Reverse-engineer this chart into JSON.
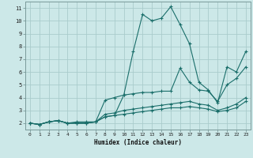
{
  "xlabel": "Humidex (Indice chaleur)",
  "background_color": "#cce8e8",
  "grid_color": "#aacccc",
  "line_color": "#1a6e6a",
  "xlim": [
    -0.5,
    23.5
  ],
  "ylim": [
    1.5,
    11.5
  ],
  "xticks": [
    0,
    1,
    2,
    3,
    4,
    5,
    6,
    7,
    8,
    9,
    10,
    11,
    12,
    13,
    14,
    15,
    16,
    17,
    18,
    19,
    20,
    21,
    22,
    23
  ],
  "yticks": [
    2,
    3,
    4,
    5,
    6,
    7,
    8,
    9,
    10,
    11
  ],
  "series": [
    [
      2.0,
      1.9,
      2.1,
      2.2,
      2.0,
      2.1,
      2.1,
      2.1,
      2.5,
      2.6,
      4.2,
      7.6,
      10.5,
      10.0,
      10.2,
      11.1,
      9.7,
      8.2,
      5.2,
      4.6,
      3.6,
      6.4,
      6.0,
      7.6
    ],
    [
      2.0,
      1.9,
      2.1,
      2.2,
      2.0,
      2.0,
      2.0,
      2.1,
      3.8,
      4.0,
      4.2,
      4.3,
      4.4,
      4.4,
      4.5,
      4.5,
      6.3,
      5.2,
      4.6,
      4.5,
      3.7,
      5.0,
      5.5,
      6.4
    ],
    [
      2.0,
      1.9,
      2.1,
      2.2,
      2.0,
      2.0,
      2.0,
      2.1,
      2.7,
      2.8,
      3.0,
      3.1,
      3.2,
      3.3,
      3.4,
      3.5,
      3.6,
      3.7,
      3.5,
      3.4,
      3.0,
      3.2,
      3.5,
      4.0
    ],
    [
      2.0,
      1.9,
      2.1,
      2.2,
      2.0,
      2.0,
      2.0,
      2.1,
      2.5,
      2.6,
      2.7,
      2.8,
      2.9,
      3.0,
      3.1,
      3.2,
      3.2,
      3.3,
      3.2,
      3.1,
      2.9,
      3.0,
      3.2,
      3.7
    ]
  ]
}
